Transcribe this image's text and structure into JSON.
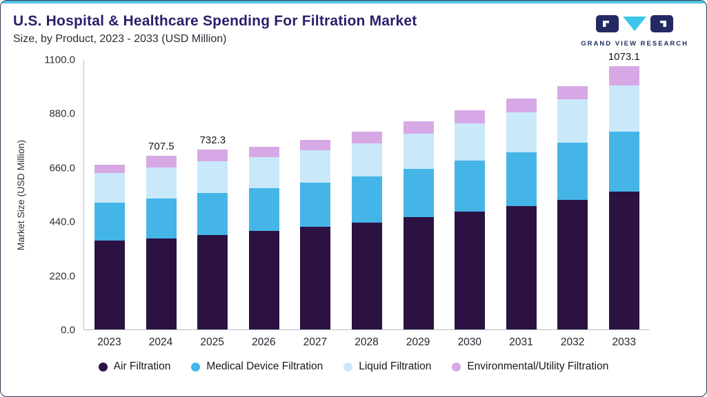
{
  "header": {
    "title": "U.S. Hospital & Healthcare Spending For Filtration Market",
    "subtitle": "Size, by Product, 2023 - 2033 (USD Million)",
    "logo_text": "GRAND VIEW RESEARCH"
  },
  "chart_data": {
    "type": "bar",
    "stacked": true,
    "title": "U.S. Hospital & Healthcare Spending For Filtration Market Size, by Product, 2023 - 2033 (USD Million)",
    "xlabel": "",
    "ylabel": "Market Size (USD Million)",
    "ylim": [
      0,
      1100
    ],
    "y_ticks": [
      "0.0",
      "220.0",
      "440.0",
      "660.0",
      "880.0",
      "1100.0"
    ],
    "grid": false,
    "legend_position": "bottom",
    "categories": [
      "2023",
      "2024",
      "2025",
      "2026",
      "2027",
      "2028",
      "2029",
      "2030",
      "2031",
      "2032",
      "2033"
    ],
    "series": [
      {
        "name": "Air Filtration",
        "color": "#2b1242",
        "values": [
          362,
          371,
          385,
          400,
          417,
          434,
          458,
          480,
          503,
          528,
          560
        ]
      },
      {
        "name": "Medical Device Filtration",
        "color": "#45b5e8",
        "values": [
          155,
          163,
          172,
          176,
          181,
          190,
          196,
          208,
          219,
          233,
          246
        ]
      },
      {
        "name": "Liquid Filtration",
        "color": "#c9e9fb",
        "values": [
          120,
          126,
          128,
          126,
          132,
          134,
          144,
          152,
          163,
          177,
          188
        ]
      },
      {
        "name": "Environmental/Utility Filtration",
        "color": "#d7a8e6",
        "values": [
          33,
          47.5,
          47.3,
          42,
          42,
          48,
          50,
          53,
          55,
          52,
          79.1
        ]
      }
    ],
    "totals_labels": {
      "2024": "707.5",
      "2025": "732.3",
      "2033": "1073.1"
    },
    "totals": [
      670,
      707.5,
      732.3,
      744,
      772,
      806,
      848,
      893,
      940,
      990,
      1073.1
    ]
  },
  "colors": {
    "accent_top": "#4ec3e0",
    "title": "#291f6b",
    "logo_navy": "#232a63",
    "logo_cyan": "#3cc6ea",
    "axis_line": "#b7bec6"
  }
}
